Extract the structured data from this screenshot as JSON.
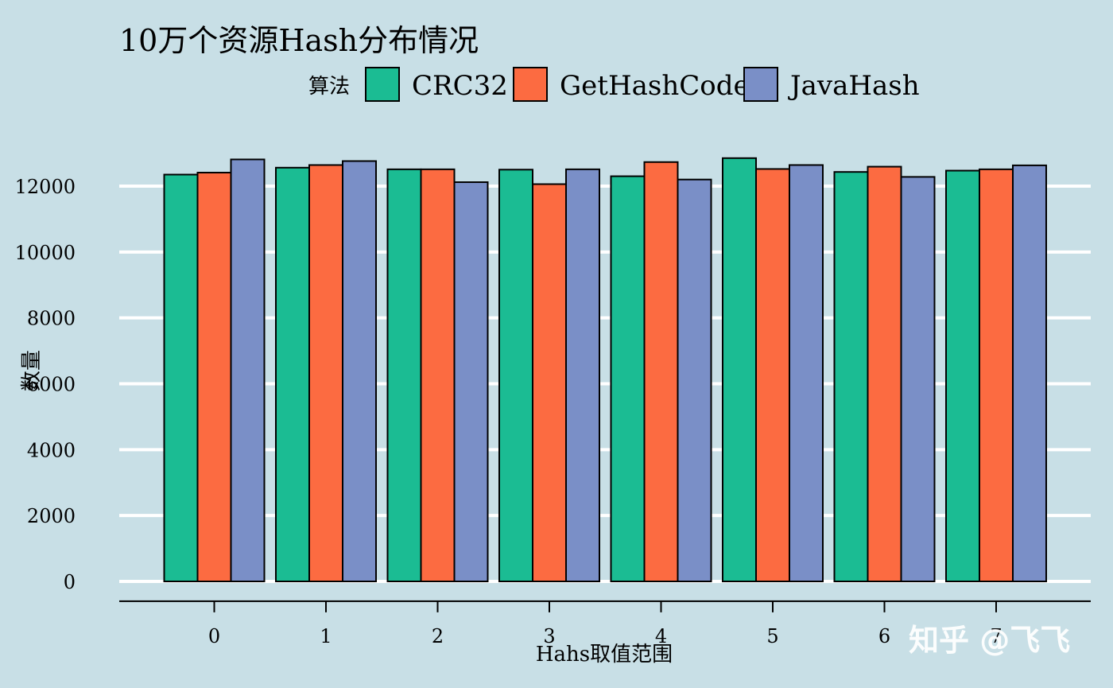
{
  "chart_data": {
    "type": "bar",
    "title": "10万个资源Hash分布情况",
    "legend_title": "算法",
    "legend_placement": "top",
    "xlabel": "Hahs取值范围",
    "ylabel": "数量",
    "categories": [
      "0",
      "1",
      "2",
      "3",
      "4",
      "5",
      "6",
      "7"
    ],
    "ylim": [
      -600,
      13200
    ],
    "yticks": [
      0,
      2000,
      4000,
      6000,
      8000,
      10000,
      12000
    ],
    "grid": true,
    "series": [
      {
        "name": "CRC32",
        "color": "#1bbc93",
        "values": [
          12350,
          12560,
          12510,
          12500,
          12300,
          12850,
          12430,
          12470
        ]
      },
      {
        "name": "GetHashCode",
        "color": "#fc6b41",
        "values": [
          12410,
          12640,
          12510,
          12060,
          12730,
          12520,
          12590,
          12510
        ]
      },
      {
        "name": "JavaHash",
        "color": "#7a8fc7",
        "values": [
          12810,
          12760,
          12120,
          12510,
          12200,
          12640,
          12280,
          12630
        ]
      }
    ]
  },
  "watermark": "知乎 @飞飞"
}
